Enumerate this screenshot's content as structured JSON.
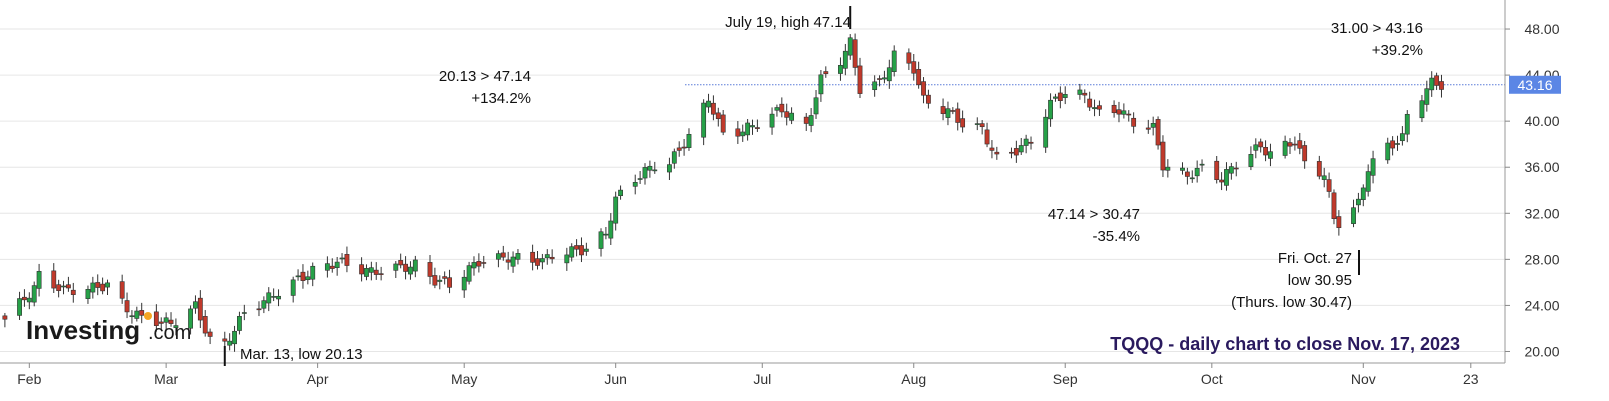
{
  "chart_data": {
    "type": "candlestick",
    "symbol": "TQQQ",
    "title": "TQQQ - daily chart to close Nov. 17, 2023",
    "ylim": [
      19,
      50
    ],
    "yticks": [
      20,
      24,
      28,
      32,
      36,
      40,
      44,
      48
    ],
    "ytick_labels": [
      "20.00",
      "24.00",
      "28.00",
      "32.00",
      "36.00",
      "40.00",
      "44.00",
      "48.00"
    ],
    "xticks": [
      {
        "label": "Feb",
        "date": "2023-02-01"
      },
      {
        "label": "Mar",
        "date": "2023-03-01"
      },
      {
        "label": "Apr",
        "date": "2023-04-01"
      },
      {
        "label": "May",
        "date": "2023-05-01"
      },
      {
        "label": "Jun",
        "date": "2023-06-01"
      },
      {
        "label": "Jul",
        "date": "2023-07-01"
      },
      {
        "label": "Aug",
        "date": "2023-08-01"
      },
      {
        "label": "Sep",
        "date": "2023-09-01"
      },
      {
        "label": "Oct",
        "date": "2023-10-01"
      },
      {
        "label": "Nov",
        "date": "2023-11-01"
      },
      {
        "label": "23",
        "date": "2023-11-23"
      }
    ],
    "x_start": "2023-01-26",
    "x_end": "2023-11-30",
    "last_price": 43.16,
    "last_price_label": "43.16",
    "reference_line": 43.16,
    "up_color": "#26a148",
    "down_color": "#c0392b",
    "close_path": [
      [
        "2023-01-27",
        22.8
      ],
      [
        "2023-02-02",
        25.5
      ],
      [
        "2023-02-03",
        26.6
      ],
      [
        "2023-02-08",
        25.3
      ],
      [
        "2023-02-14",
        25.5
      ],
      [
        "2023-02-17",
        25.8
      ],
      [
        "2023-02-21",
        23.7
      ],
      [
        "2023-02-24",
        22.9
      ],
      [
        "2023-03-02",
        22.4
      ],
      [
        "2023-03-07",
        23.9
      ],
      [
        "2023-03-10",
        21.0
      ],
      [
        "2023-03-13",
        20.6
      ],
      [
        "2023-03-17",
        23.3
      ],
      [
        "2023-03-24",
        25.2
      ],
      [
        "2023-03-31",
        27.0
      ],
      [
        "2023-04-05",
        27.8
      ],
      [
        "2023-04-12",
        26.9
      ],
      [
        "2023-04-18",
        27.3
      ],
      [
        "2023-04-21",
        27.5
      ],
      [
        "2023-04-25",
        26.2
      ],
      [
        "2023-04-28",
        25.8
      ],
      [
        "2023-05-04",
        27.8
      ],
      [
        "2023-05-10",
        28.2
      ],
      [
        "2023-05-17",
        27.8
      ],
      [
        "2023-05-19",
        28.4
      ],
      [
        "2023-05-26",
        28.9
      ],
      [
        "2023-05-30",
        30.3
      ],
      [
        "2023-06-01",
        33.2
      ],
      [
        "2023-06-05",
        35.0
      ],
      [
        "2023-06-09",
        36.2
      ],
      [
        "2023-06-12",
        36.3
      ],
      [
        "2023-06-16",
        38.7
      ],
      [
        "2023-06-20",
        42.0
      ],
      [
        "2023-06-23",
        38.8
      ],
      [
        "2023-06-27",
        39.2
      ],
      [
        "2023-06-30",
        39.8
      ],
      [
        "2023-07-05",
        41.0
      ],
      [
        "2023-07-07",
        40.4
      ],
      [
        "2023-07-10",
        39.5
      ],
      [
        "2023-07-13",
        43.6
      ],
      [
        "2023-07-17",
        45.3
      ],
      [
        "2023-07-19",
        46.8
      ],
      [
        "2023-07-21",
        42.8
      ],
      [
        "2023-07-25",
        43.3
      ],
      [
        "2023-07-28",
        45.7
      ],
      [
        "2023-08-01",
        44.6
      ],
      [
        "2023-08-03",
        41.8
      ],
      [
        "2023-08-08",
        40.9
      ],
      [
        "2023-08-11",
        39.8
      ],
      [
        "2023-08-15",
        39.3
      ],
      [
        "2023-08-18",
        36.7
      ],
      [
        "2023-08-22",
        37.5
      ],
      [
        "2023-08-25",
        38.3
      ],
      [
        "2023-08-29",
        41.5
      ],
      [
        "2023-09-01",
        42.5
      ],
      [
        "2023-09-05",
        42.2
      ],
      [
        "2023-09-08",
        40.6
      ],
      [
        "2023-09-12",
        41.0
      ],
      [
        "2023-09-15",
        39.9
      ],
      [
        "2023-09-19",
        39.4
      ],
      [
        "2023-09-21",
        36.2
      ],
      [
        "2023-09-26",
        35.3
      ],
      [
        "2023-09-29",
        35.9
      ],
      [
        "2023-10-03",
        35.0
      ],
      [
        "2023-10-06",
        36.3
      ],
      [
        "2023-10-11",
        37.8
      ],
      [
        "2023-10-13",
        37.2
      ],
      [
        "2023-10-18",
        38.3
      ],
      [
        "2023-10-20",
        36.3
      ],
      [
        "2023-10-24",
        35.4
      ],
      [
        "2023-10-26",
        31.5
      ],
      [
        "2023-10-27",
        31.2
      ],
      [
        "2023-10-31",
        32.8
      ],
      [
        "2023-11-02",
        36.0
      ],
      [
        "2023-11-06",
        37.8
      ],
      [
        "2023-11-09",
        38.5
      ],
      [
        "2023-11-10",
        40.5
      ],
      [
        "2023-11-14",
        42.8
      ],
      [
        "2023-11-15",
        43.3
      ],
      [
        "2023-11-17",
        43.16
      ]
    ],
    "annotations": [
      {
        "id": "july-high",
        "lines": [
          "July 19, high 47.14"
        ],
        "date": "2023-07-19",
        "price": 47.14,
        "marker": "above"
      },
      {
        "id": "march-low",
        "lines": [
          "Mar. 13, low 20.13"
        ],
        "date": "2023-03-13",
        "price": 20.13,
        "marker": "below"
      },
      {
        "id": "oct-low",
        "lines": [
          "Fri. Oct. 27",
          "low 30.95",
          "(Thurs. low 30.47)"
        ],
        "date": "2023-10-27",
        "price": 30.95,
        "marker": "below"
      },
      {
        "id": "rise-1",
        "lines": [
          "20.13 > 47.14",
          "+134.2%"
        ]
      },
      {
        "id": "drop",
        "lines": [
          "47.14 > 30.47",
          "-35.4%"
        ]
      },
      {
        "id": "rise-2",
        "lines": [
          "31.00 > 43.16",
          "+39.2%"
        ]
      }
    ],
    "grid": true,
    "x_gridlines": false
  },
  "branding": {
    "logo_text": "Investing",
    "logo_suffix": ".com",
    "logo_dot_color": "#f5a623"
  }
}
